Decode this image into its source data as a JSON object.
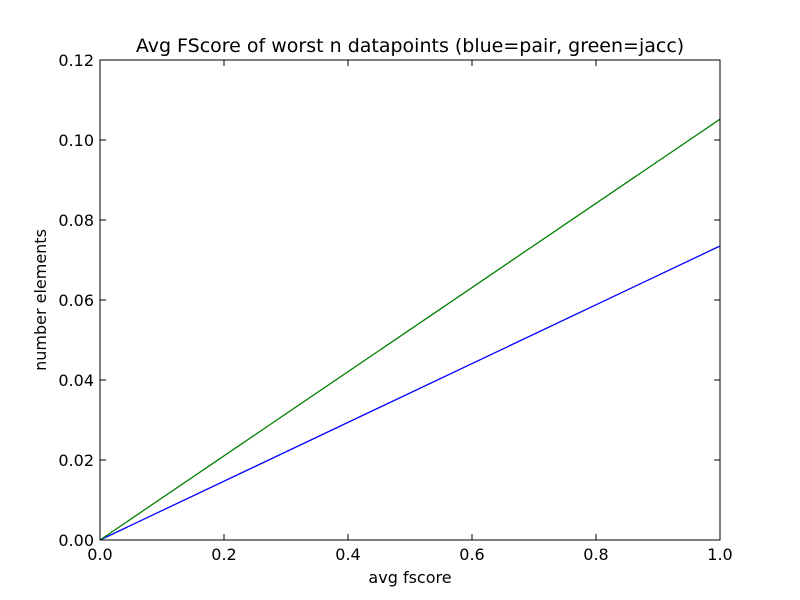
{
  "chart_data": {
    "type": "line",
    "title": "Avg FScore of worst n datapoints (blue=pair, green=jacc)",
    "xlabel": "avg fscore",
    "ylabel": "number elements",
    "xlim": [
      0.0,
      1.0
    ],
    "ylim": [
      0.0,
      0.12
    ],
    "xticks": [
      "0.0",
      "0.2",
      "0.4",
      "0.6",
      "0.8",
      "1.0"
    ],
    "yticks": [
      "0.00",
      "0.02",
      "0.04",
      "0.06",
      "0.08",
      "0.10",
      "0.12"
    ],
    "grid": false,
    "series": [
      {
        "color": "#0000ff",
        "x": [
          0.0,
          1.0
        ],
        "y": [
          0.0,
          0.0735
        ]
      },
      {
        "color": "#008000",
        "x": [
          0.0,
          1.0
        ],
        "y": [
          0.0,
          0.1052
        ]
      }
    ]
  }
}
